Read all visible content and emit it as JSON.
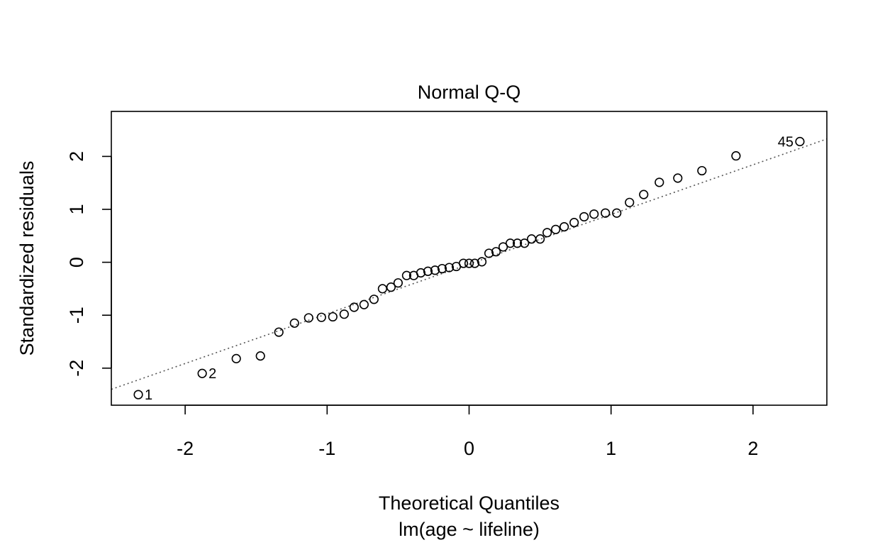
{
  "chart_data": {
    "type": "scatter",
    "title": "Normal Q-Q",
    "xlabel": "Theoretical Quantiles",
    "subtitle": "lm(age ~ lifeline)",
    "ylabel": "Standardized residuals",
    "xlim": [
      -2.52,
      2.52
    ],
    "ylim": [
      -2.7,
      2.85
    ],
    "x_ticks": [
      -2,
      -1,
      0,
      1,
      2
    ],
    "x_tick_labels": [
      "-2",
      "-1",
      "0",
      "1",
      "2"
    ],
    "y_ticks": [
      -2,
      -1,
      0,
      1,
      2
    ],
    "y_tick_labels": [
      "-2",
      "-1",
      "0",
      "1",
      "2"
    ],
    "grid": false,
    "reference_line": {
      "style": "dotted",
      "color": "#555555",
      "points": [
        [
          -2.52,
          -2.4
        ],
        [
          2.52,
          2.33
        ]
      ]
    },
    "points": {
      "x": [
        -2.33,
        -1.88,
        -1.64,
        -1.47,
        -1.34,
        -1.23,
        -1.13,
        -1.04,
        -0.96,
        -0.88,
        -0.81,
        -0.74,
        -0.67,
        -0.61,
        -0.55,
        -0.5,
        -0.44,
        -0.39,
        -0.34,
        -0.29,
        -0.24,
        -0.19,
        -0.14,
        -0.09,
        -0.04,
        0.0,
        0.04,
        0.09,
        0.14,
        0.19,
        0.24,
        0.29,
        0.34,
        0.39,
        0.44,
        0.5,
        0.55,
        0.61,
        0.67,
        0.74,
        0.81,
        0.88,
        0.96,
        1.04,
        1.13,
        1.23,
        1.34,
        1.47,
        1.64,
        1.88,
        2.33
      ],
      "y": [
        -2.5,
        -2.1,
        -1.82,
        -1.77,
        -1.32,
        -1.15,
        -1.05,
        -1.04,
        -1.03,
        -0.98,
        -0.85,
        -0.8,
        -0.7,
        -0.5,
        -0.47,
        -0.39,
        -0.25,
        -0.25,
        -0.2,
        -0.17,
        -0.15,
        -0.12,
        -0.1,
        -0.08,
        -0.02,
        -0.02,
        -0.02,
        0.01,
        0.17,
        0.2,
        0.29,
        0.36,
        0.36,
        0.36,
        0.44,
        0.44,
        0.56,
        0.62,
        0.67,
        0.75,
        0.86,
        0.91,
        0.93,
        0.93,
        1.13,
        1.28,
        1.51,
        1.59,
        1.73,
        2.01,
        2.28
      ]
    },
    "point_labels": [
      {
        "index": 0,
        "text": "1",
        "side": "right"
      },
      {
        "index": 1,
        "text": "2",
        "side": "right"
      },
      {
        "index": 50,
        "text": "45",
        "side": "left"
      }
    ]
  }
}
